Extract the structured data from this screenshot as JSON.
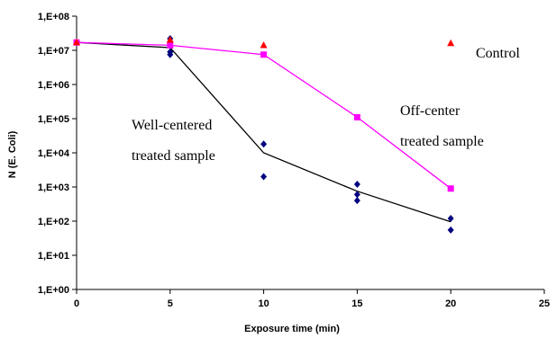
{
  "chart_data": {
    "type": "scatter",
    "xlabel": "Exposure time (min)",
    "ylabel": "N (E. Coli)",
    "xlim": [
      0,
      25
    ],
    "ylim_log10": [
      0,
      8
    ],
    "x_ticks": [
      "0",
      "5",
      "10",
      "15",
      "20",
      "25"
    ],
    "y_ticks": [
      "1,E+00",
      "1,E+01",
      "1,E+02",
      "1,E+03",
      "1,E+04",
      "1,E+05",
      "1,E+06",
      "1,E+07",
      "1,E+08"
    ],
    "y_scale": "log",
    "grid": false,
    "series": [
      {
        "key": "well",
        "color": "#000080",
        "marker": "diamond",
        "points": [
          [
            0,
            17000000
          ],
          [
            5,
            22000000
          ],
          [
            5,
            18000000
          ],
          [
            5,
            9000000
          ],
          [
            5,
            7500000
          ],
          [
            10,
            18000
          ],
          [
            10,
            2000
          ],
          [
            15,
            1200
          ],
          [
            15,
            600
          ],
          [
            15,
            400
          ],
          [
            20,
            120
          ],
          [
            20,
            55
          ]
        ],
        "fit_line_color": "#000000",
        "fit_line": [
          [
            0,
            17000000
          ],
          [
            5,
            12000000
          ],
          [
            10,
            10000
          ],
          [
            15,
            750
          ],
          [
            20,
            95
          ]
        ]
      },
      {
        "key": "off",
        "color": "#ff00ff",
        "marker": "square",
        "points": [
          [
            0,
            17000000
          ],
          [
            5,
            14000000
          ],
          [
            10,
            7500000
          ],
          [
            15,
            110000
          ],
          [
            20,
            900
          ]
        ],
        "line_color": "#ff00ff"
      },
      {
        "key": "control",
        "color": "#ff0000",
        "marker": "triangle",
        "points": [
          [
            0,
            17000000
          ],
          [
            5,
            20000000
          ],
          [
            10,
            14000000
          ],
          [
            20,
            16000000
          ]
        ]
      }
    ],
    "annotations": [
      {
        "key": "control_label",
        "text": "Control"
      },
      {
        "key": "well_label_1",
        "text": "Well-centered"
      },
      {
        "key": "well_label_2",
        "text": "treated sample"
      },
      {
        "key": "off_label_1",
        "text": "Off-center"
      },
      {
        "key": "off_label_2",
        "text": "treated sample"
      }
    ]
  }
}
